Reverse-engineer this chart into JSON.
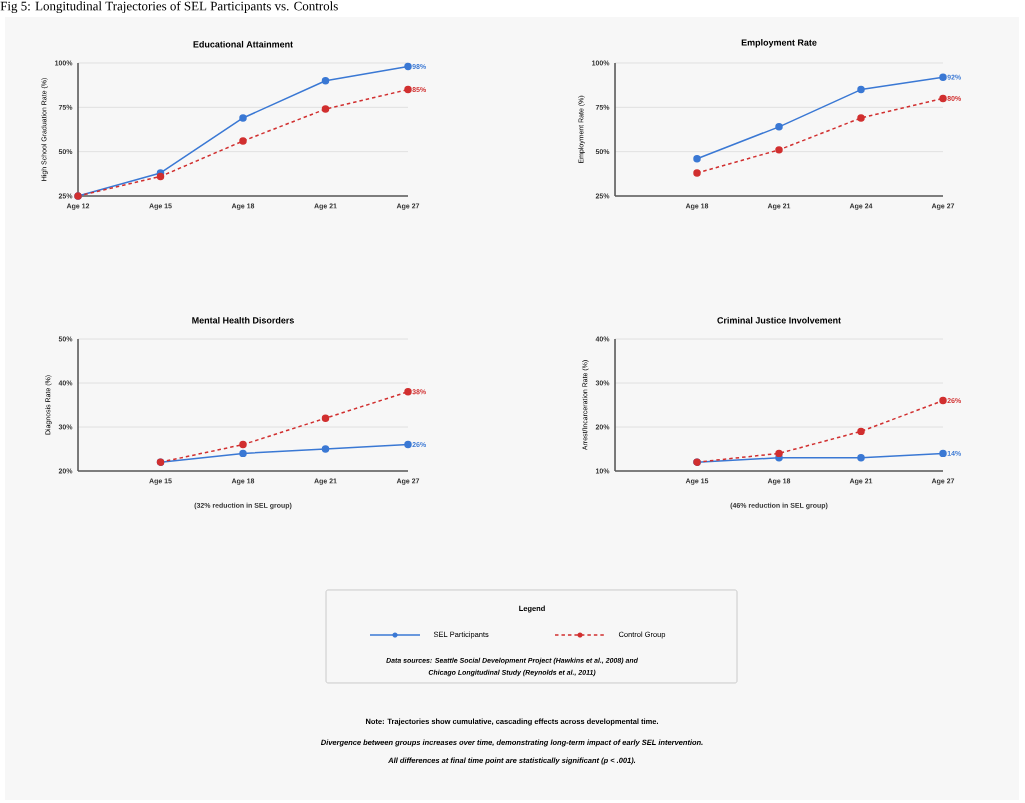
{
  "chart_data": [
    {
      "type": "line",
      "title": "Educational Attainment",
      "ylabel": "High School Graduation Rate (%)",
      "categories": [
        "Age 12",
        "Age 15",
        "Age 18",
        "Age 21",
        "Age 27"
      ],
      "ylim": [
        25,
        100
      ],
      "yticks": [
        {
          "value": 25,
          "label": "25%"
        },
        {
          "value": 50,
          "label": "50%"
        },
        {
          "value": 75,
          "label": "75%"
        },
        {
          "value": 100,
          "label": "100%"
        }
      ],
      "grid": "y",
      "marker": "circle",
      "legend": "bottom",
      "legend_title": "Legend",
      "series": [
        {
          "name": "SEL Participants",
          "color": "#3a78d4",
          "line_style": "solid",
          "values": [
            25,
            38,
            69,
            90,
            98
          ],
          "value_labels": [
            null,
            null,
            null,
            null,
            "98%"
          ]
        },
        {
          "name": "Control Group",
          "color": "#d12f2f",
          "line_style": "dashed",
          "values": [
            25,
            36,
            56,
            74,
            85
          ],
          "value_labels": [
            null,
            null,
            null,
            null,
            "85%"
          ]
        }
      ]
    },
    {
      "type": "line",
      "title": "Employment Rate",
      "ylabel": "Employment Rate (%)",
      "categories": [
        null,
        "Age 18",
        "Age 21",
        "Age 24",
        "Age 27"
      ],
      "ylim": [
        25,
        100
      ],
      "yticks": [
        {
          "value": 25,
          "label": "25%"
        },
        {
          "value": 50,
          "label": "50%"
        },
        {
          "value": 75,
          "label": "75%"
        },
        {
          "value": 100,
          "label": "100%"
        }
      ],
      "grid": "y",
      "marker": "circle",
      "series": [
        {
          "color": "#3a78d4",
          "line_style": "solid",
          "values": [
            null,
            46,
            64,
            85,
            92
          ],
          "value_labels": [
            null,
            null,
            null,
            null,
            "92%"
          ]
        },
        {
          "color": "#d12f2f",
          "line_style": "dashed",
          "values": [
            null,
            38,
            51,
            69,
            80
          ],
          "value_labels": [
            null,
            null,
            null,
            null,
            "80%"
          ]
        }
      ]
    },
    {
      "type": "line",
      "title": "Mental Health Disorders",
      "ylabel": "Diagnosis Rate (%)",
      "categories": [
        null,
        "Age 15",
        "Age 18",
        "Age 21",
        "Age 27"
      ],
      "ylim": [
        20,
        50
      ],
      "yticks": [
        {
          "value": 20,
          "label": "20%"
        },
        {
          "value": 30,
          "label": "30%"
        },
        {
          "value": 40,
          "label": "40%"
        },
        {
          "value": 50,
          "label": "50%"
        }
      ],
      "grid": "y",
      "marker": "circle",
      "annotations": [
        "(32% reduction in SEL group)"
      ],
      "series": [
        {
          "color": "#3a78d4",
          "line_style": "solid",
          "values": [
            null,
            22,
            24,
            25,
            26
          ],
          "value_labels": [
            null,
            null,
            null,
            null,
            "26%"
          ]
        },
        {
          "color": "#d12f2f",
          "line_style": "dashed",
          "values": [
            null,
            22,
            26,
            32,
            38
          ],
          "value_labels": [
            null,
            null,
            null,
            null,
            "38%"
          ]
        }
      ]
    },
    {
      "type": "line",
      "title": "Criminal Justice Involvement",
      "ylabel": "Arrest/Incarceration Rate (%)",
      "categories": [
        null,
        "Age 15",
        "Age 18",
        "Age 21",
        "Age 27"
      ],
      "ylim": [
        10,
        40
      ],
      "yticks": [
        {
          "value": 10,
          "label": "10%"
        },
        {
          "value": 20,
          "label": "20%"
        },
        {
          "value": 30,
          "label": "30%"
        },
        {
          "value": 40,
          "label": "40%"
        }
      ],
      "grid": "y",
      "marker": "circle",
      "annotations": [
        "(46% reduction in SEL group)"
      ],
      "series": [
        {
          "color": "#3a78d4",
          "line_style": "solid",
          "values": [
            null,
            12,
            13,
            13,
            14
          ],
          "value_labels": [
            null,
            null,
            null,
            null,
            "14%"
          ]
        },
        {
          "color": "#d12f2f",
          "line_style": "dashed",
          "values": [
            null,
            12,
            14,
            19,
            26
          ],
          "value_labels": [
            null,
            null,
            null,
            null,
            "26%"
          ]
        }
      ]
    },
    {
      "type": "other",
      "title": "Fig 5: Longitudinal Trajectories of SEL Participants vs. Controls",
      "annotations": [
        "Data sources: Seattle Social Development Project (Hawkins et al., 2008) and",
        "Chicago Longitudinal Study (Reynolds et al., 2011)",
        "Note: Trajectories show cumulative, cascading effects across developmental time.",
        "Divergence between groups increases over time, demonstrating long-term impact of early SEL intervention.",
        "All differences at final time point are statistically significant (p < .001)."
      ]
    }
  ]
}
